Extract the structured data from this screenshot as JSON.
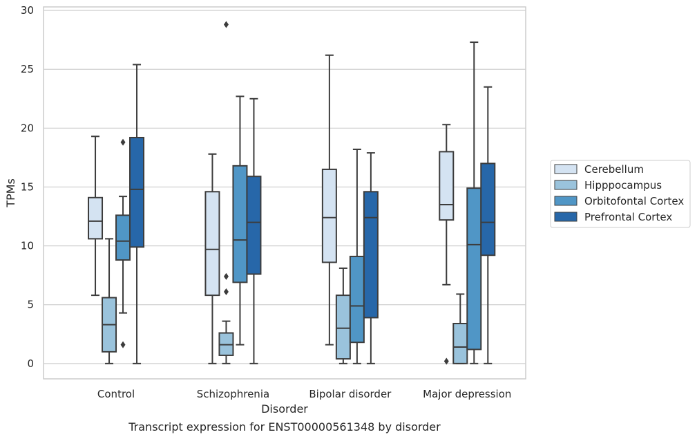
{
  "chart_data": {
    "type": "box",
    "xlabel": "Disorder",
    "ylabel": "TPMs",
    "caption": "Transcript expression for ENST00000561348 by disorder",
    "ylim": [
      -1.3,
      30.3
    ],
    "yticks": [
      0,
      5,
      10,
      15,
      20,
      25,
      30
    ],
    "grid": "horizontal",
    "legend_position": "right",
    "categories": [
      "Control",
      "Schizophrenia",
      "Bipolar disorder",
      "Major depression"
    ],
    "series": [
      {
        "name": "Cerebellum",
        "color": "#d4e3f2",
        "boxes": [
          {
            "min": 5.8,
            "q1": 10.6,
            "median": 12.1,
            "q3": 14.1,
            "max": 19.3,
            "outliers": []
          },
          {
            "min": 0.0,
            "q1": 5.8,
            "median": 9.7,
            "q3": 14.6,
            "max": 17.8,
            "outliers": []
          },
          {
            "min": 1.6,
            "q1": 8.6,
            "median": 12.4,
            "q3": 16.5,
            "max": 26.2,
            "outliers": []
          },
          {
            "min": 6.7,
            "q1": 12.2,
            "median": 13.5,
            "q3": 18.0,
            "max": 20.3,
            "outliers": [
              0.2
            ]
          }
        ]
      },
      {
        "name": "Hipppocampus",
        "color": "#9ac3dc",
        "boxes": [
          {
            "min": 0.0,
            "q1": 1.0,
            "median": 3.3,
            "q3": 5.6,
            "max": 10.6,
            "outliers": []
          },
          {
            "min": 0.0,
            "q1": 0.7,
            "median": 1.6,
            "q3": 2.6,
            "max": 3.6,
            "outliers": [
              6.1,
              7.4,
              28.8
            ]
          },
          {
            "min": 0.0,
            "q1": 0.4,
            "median": 3.0,
            "q3": 5.8,
            "max": 8.1,
            "outliers": []
          },
          {
            "min": 0.0,
            "q1": 0.0,
            "median": 1.4,
            "q3": 3.4,
            "max": 5.9,
            "outliers": []
          }
        ]
      },
      {
        "name": "Orbitofontal Cortex",
        "color": "#5096c6",
        "boxes": [
          {
            "min": 4.3,
            "q1": 8.8,
            "median": 10.4,
            "q3": 12.6,
            "max": 14.2,
            "outliers": [
              1.6,
              18.8
            ]
          },
          {
            "min": 1.6,
            "q1": 6.9,
            "median": 10.5,
            "q3": 16.8,
            "max": 22.7,
            "outliers": []
          },
          {
            "min": 0.0,
            "q1": 1.8,
            "median": 4.9,
            "q3": 9.1,
            "max": 18.2,
            "outliers": []
          },
          {
            "min": 0.0,
            "q1": 1.2,
            "median": 10.1,
            "q3": 14.9,
            "max": 27.3,
            "outliers": []
          }
        ]
      },
      {
        "name": "Prefrontal Cortex",
        "color": "#2767a9",
        "boxes": [
          {
            "min": 0.0,
            "q1": 9.9,
            "median": 14.8,
            "q3": 19.2,
            "max": 25.4,
            "outliers": []
          },
          {
            "min": 0.0,
            "q1": 7.6,
            "median": 12.0,
            "q3": 15.9,
            "max": 22.5,
            "outliers": []
          },
          {
            "min": 0.0,
            "q1": 3.9,
            "median": 12.4,
            "q3": 14.6,
            "max": 17.9,
            "outliers": []
          },
          {
            "min": 0.0,
            "q1": 9.2,
            "median": 12.0,
            "q3": 17.0,
            "max": 23.5,
            "outliers": []
          }
        ]
      }
    ]
  }
}
